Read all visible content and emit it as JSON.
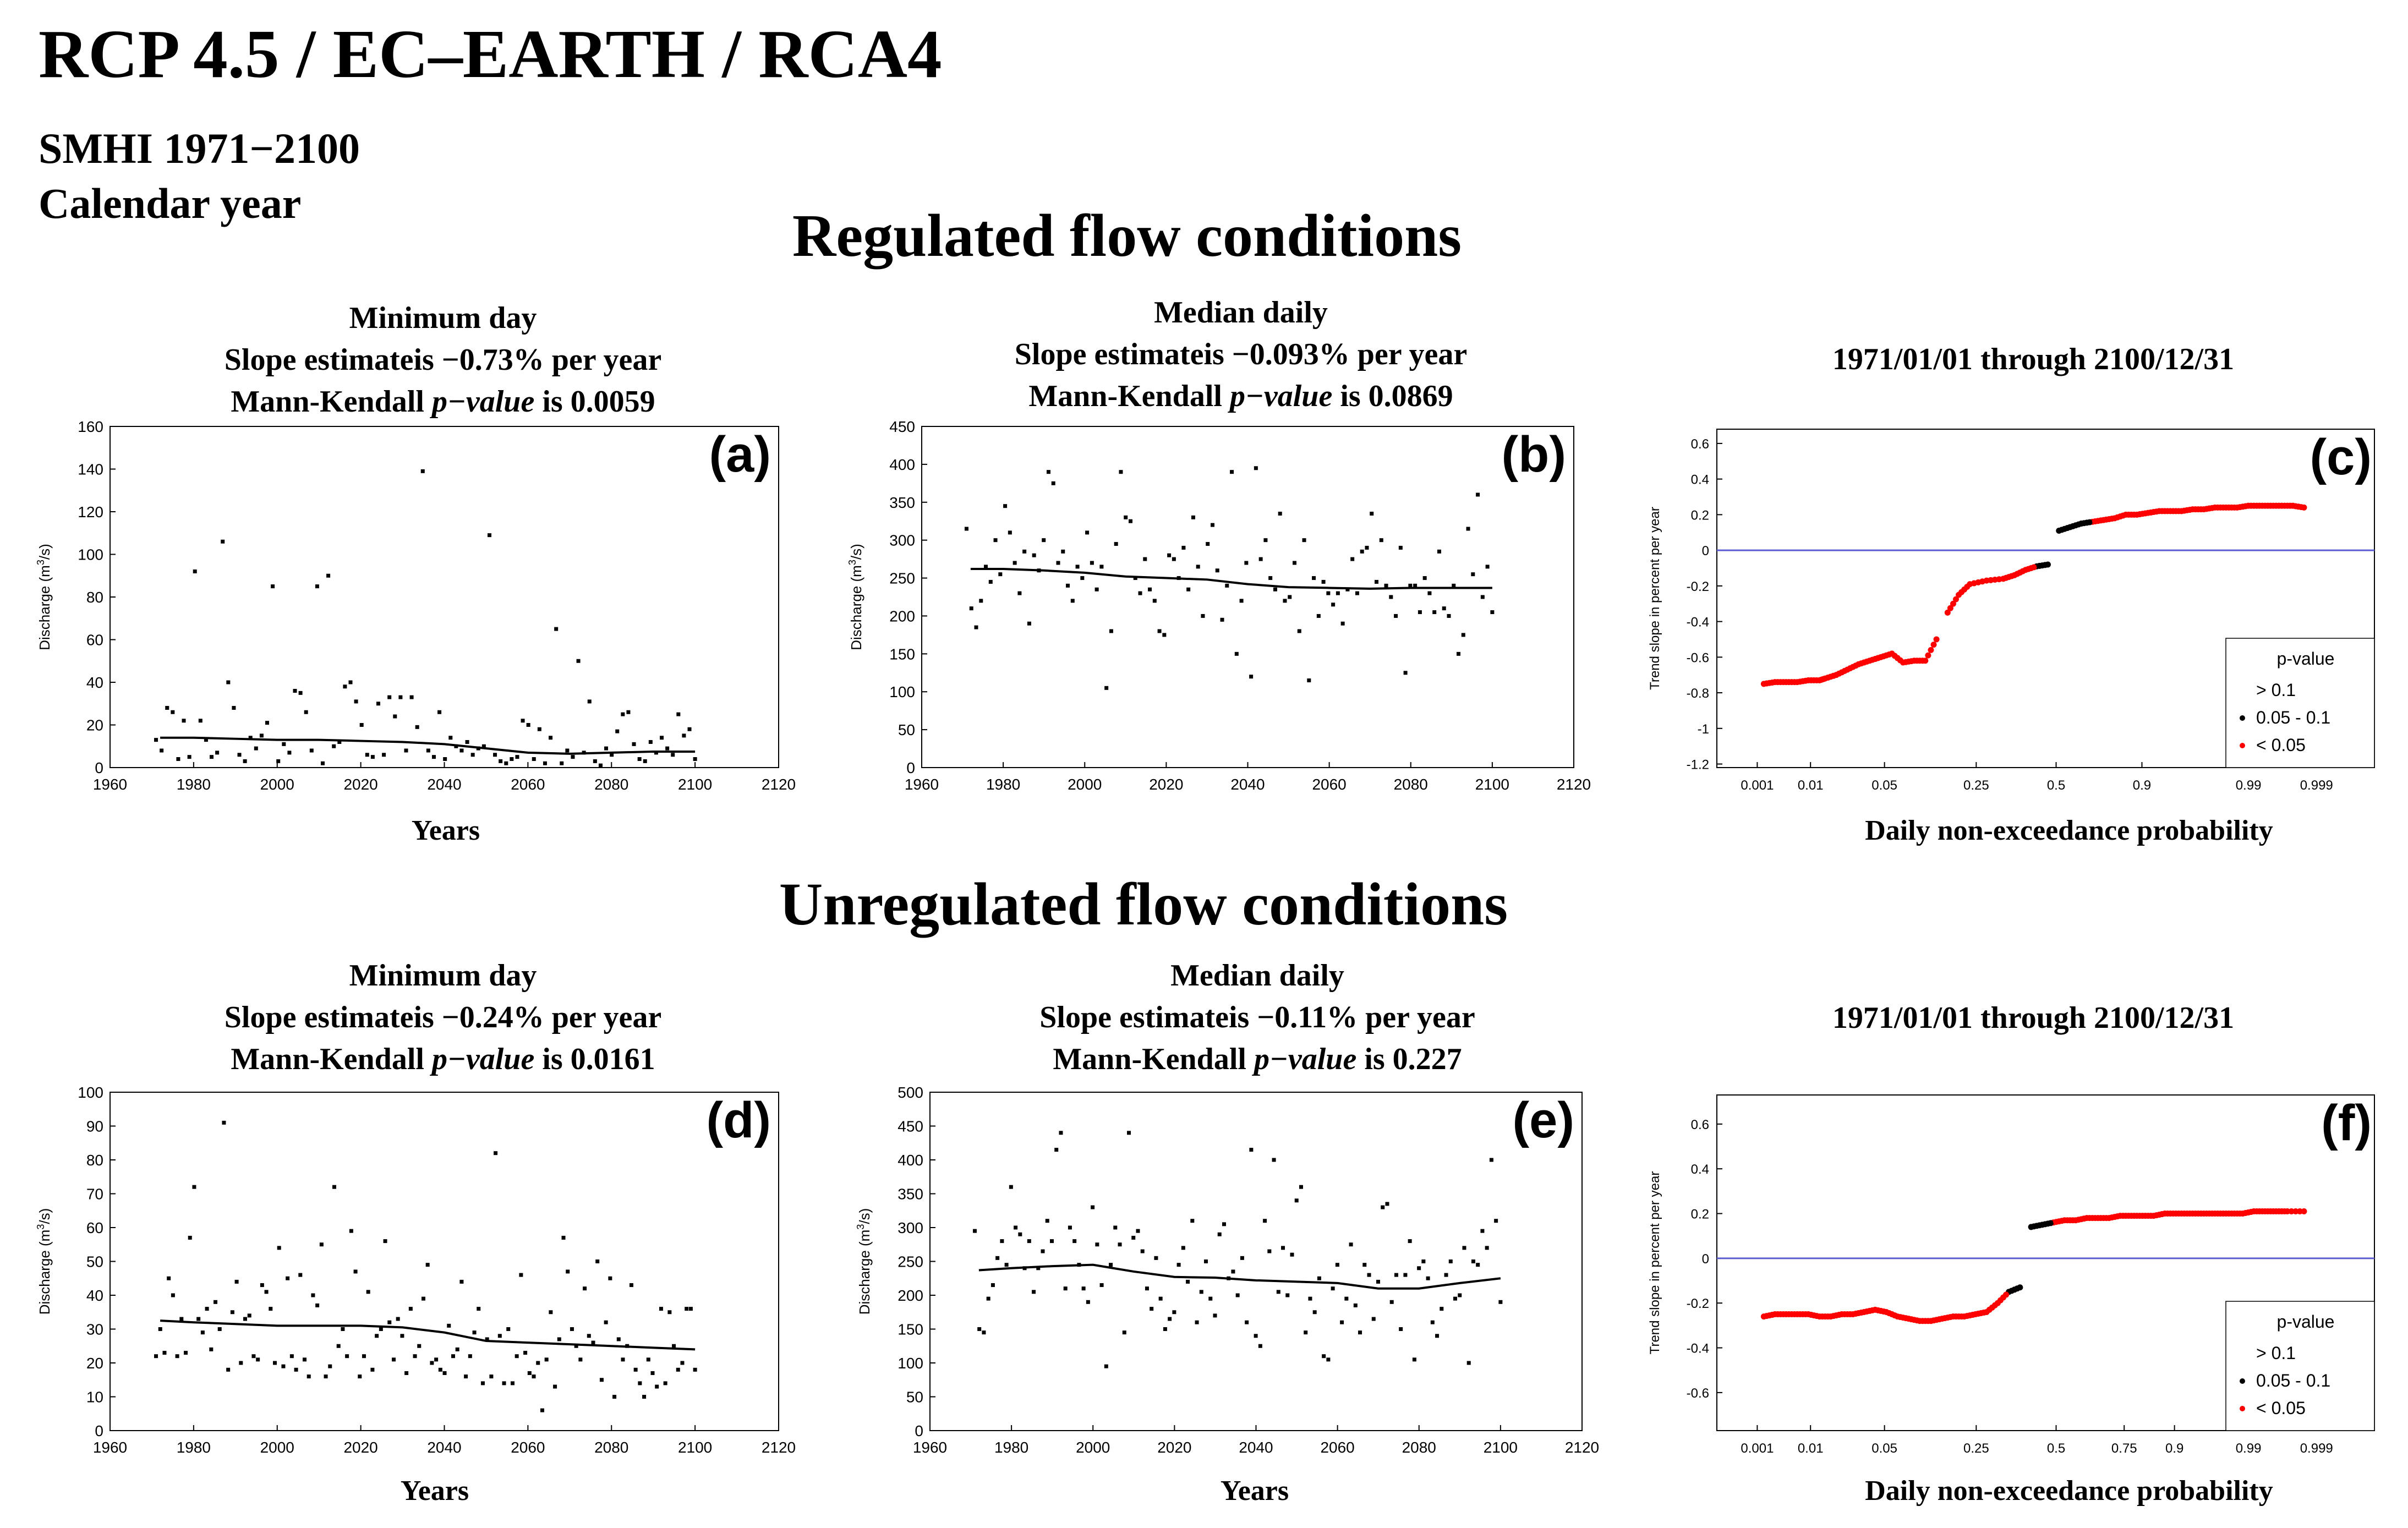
{
  "header": {
    "title": "RCP 4.5 / EC–EARTH / RCA4",
    "line1": "SMHI  1971−2100",
    "line2": "Calendar year"
  },
  "sections": {
    "regulated": "Regulated flow conditions",
    "unregulated": "Unregulated flow conditions"
  },
  "panels": {
    "a": {
      "title1": "Minimum day",
      "title2": "Slope estimateis −0.73% per year",
      "title3a": "Mann-Kendall ",
      "title3b": "p−value",
      "title3c": " is 0.0059",
      "xlabel": "Years"
    },
    "b": {
      "title1": "Median daily",
      "title2": "Slope estimateis −0.093% per year",
      "title3a": "Mann-Kendall ",
      "title3b": "p−value",
      "title3c": " is 0.0869",
      "xlabel": ""
    },
    "c": {
      "title1": "1971/01/01 through 2100/12/31",
      "xlabel": "Daily non-exceedance probability"
    },
    "d": {
      "title1": "Minimum day",
      "title2": "Slope estimateis −0.24% per year",
      "title3a": "Mann-Kendall ",
      "title3b": "p−value",
      "title3c": " is 0.0161",
      "xlabel": "Years"
    },
    "e": {
      "title1": "Median daily",
      "title2": "Slope estimateis −0.11% per year",
      "title3a": "Mann-Kendall ",
      "title3b": "p−value",
      "title3c": " is 0.227",
      "xlabel": "Years"
    },
    "f": {
      "title1": "1971/01/01 through 2100/12/31",
      "xlabel": "Daily non-exceedance probability"
    }
  },
  "colors": {
    "red": "#ff0000",
    "black": "#000000",
    "zero_line": "#5a5ad2"
  },
  "chart_data": [
    {
      "id": "a",
      "type": "scatter",
      "panel_label": "(a)",
      "ylabel": "Discharge (m³/s)",
      "xlim": [
        1960,
        2120
      ],
      "ylim": [
        0,
        160
      ],
      "xticks": [
        1960,
        1980,
        2000,
        2020,
        2040,
        2060,
        2080,
        2100,
        2120
      ],
      "yticks": [
        0,
        20,
        40,
        60,
        80,
        100,
        120,
        140,
        160
      ],
      "scatter_y": [
        13,
        8,
        28,
        26,
        4,
        22,
        5,
        92,
        22,
        13,
        5,
        7,
        106,
        40,
        28,
        6,
        3,
        14,
        9,
        15,
        21,
        85,
        3,
        11,
        7,
        36,
        35,
        26,
        8,
        85,
        2,
        90,
        10,
        12,
        38,
        40,
        31,
        20,
        6,
        5,
        30,
        6,
        33,
        24,
        33,
        8,
        33,
        19,
        139,
        8,
        5,
        26,
        4,
        14,
        10,
        8,
        12,
        6,
        9,
        10,
        109,
        6,
        3,
        2,
        4,
        5,
        22,
        20,
        4,
        18,
        2,
        14,
        65,
        2,
        8,
        5,
        50,
        7,
        31,
        3,
        1,
        9,
        6,
        17,
        25,
        26,
        11,
        4,
        3,
        12,
        7,
        14,
        9,
        6,
        25,
        15,
        18,
        4
      ],
      "trend": {
        "x": [
          1972,
          1980,
          1990,
          2000,
          2010,
          2020,
          2030,
          2040,
          2050,
          2060,
          2070,
          2080,
          2090,
          2100
        ],
        "y": [
          14,
          14,
          13.5,
          13,
          13,
          12.5,
          12,
          11,
          9,
          7,
          6.5,
          7,
          7.5,
          7.5
        ]
      }
    },
    {
      "id": "b",
      "type": "scatter",
      "panel_label": "(b)",
      "ylabel": "Discharge (m³/s)",
      "xlim": [
        1960,
        2120
      ],
      "ylim": [
        0,
        450
      ],
      "xticks": [
        1960,
        1980,
        2000,
        2020,
        2040,
        2060,
        2080,
        2100,
        2120
      ],
      "yticks": [
        0,
        50,
        100,
        150,
        200,
        250,
        300,
        350,
        400,
        450
      ],
      "scatter_y": [
        315,
        210,
        185,
        220,
        265,
        245,
        300,
        255,
        345,
        310,
        270,
        230,
        285,
        190,
        280,
        260,
        300,
        390,
        375,
        270,
        285,
        240,
        220,
        265,
        250,
        310,
        270,
        235,
        265,
        105,
        180,
        295,
        390,
        330,
        325,
        250,
        230,
        275,
        235,
        220,
        180,
        175,
        280,
        275,
        250,
        290,
        235,
        330,
        265,
        200,
        295,
        320,
        260,
        195,
        240,
        390,
        150,
        220,
        270,
        120,
        395,
        275,
        300,
        250,
        235,
        335,
        220,
        225,
        270,
        180,
        300,
        115,
        250,
        200,
        245,
        230,
        215,
        230,
        190,
        235,
        275,
        230,
        285,
        290,
        335,
        245,
        300,
        240,
        225,
        200,
        290,
        125,
        240,
        240,
        205,
        250,
        230,
        205,
        285,
        210,
        200,
        240,
        150,
        175,
        315,
        255,
        360,
        225,
        265,
        205
      ],
      "trend": {
        "x": [
          1972,
          1980,
          1990,
          2000,
          2010,
          2020,
          2030,
          2040,
          2050,
          2060,
          2070,
          2080,
          2090,
          2100
        ],
        "y": [
          262,
          262,
          260,
          257,
          252,
          250,
          248,
          242,
          238,
          237,
          236,
          237,
          237,
          237
        ]
      }
    },
    {
      "id": "c",
      "type": "scatter",
      "panel_label": "(c)",
      "ylabel": "Trend slope in percent per year",
      "xticks": [
        "0.001",
        "0.01",
        "0.05",
        "0.25",
        "0.5",
        "0.9",
        "0.99",
        "0.999"
      ],
      "yticks": [
        -1.2,
        -1,
        -0.8,
        -0.6,
        -0.4,
        -0.2,
        0,
        0.2,
        0.4,
        0.6
      ],
      "ylim": [
        -1.22,
        0.68
      ],
      "legend": {
        "title": "p-value",
        "entries": [
          "> 0.1",
          "0.05 - 0.1",
          "< 0.05"
        ],
        "location": "lower-right"
      },
      "curve": {
        "t": [
          0.03,
          0.05,
          0.07,
          0.09,
          0.11,
          0.13,
          0.14,
          0.16,
          0.18,
          0.2,
          0.22,
          0.24,
          0.26,
          0.28,
          0.3,
          0.32,
          0.34,
          0.36,
          0.38,
          0.4,
          0.43,
          0.46,
          0.48,
          0.5,
          0.52,
          0.54,
          0.56,
          0.58,
          0.6,
          0.62,
          0.64,
          0.66,
          0.68,
          0.7,
          0.72,
          0.74,
          0.76,
          0.78,
          0.8,
          0.82,
          0.84,
          0.86,
          0.88,
          0.9,
          0.92,
          0.94,
          0.96,
          0.98,
          1.0
        ],
        "y": [
          -0.75,
          -0.74,
          -0.74,
          -0.74,
          -0.73,
          -0.73,
          -0.72,
          -0.7,
          -0.67,
          -0.64,
          -0.62,
          -0.6,
          -0.58,
          -0.63,
          -0.62,
          -0.62,
          -0.5,
          -0.35,
          -0.25,
          -0.19,
          -0.17,
          -0.16,
          -0.14,
          -0.11,
          -0.09,
          -0.08,
          0.11,
          0.13,
          0.15,
          0.16,
          0.17,
          0.18,
          0.2,
          0.2,
          0.21,
          0.22,
          0.22,
          0.22,
          0.23,
          0.23,
          0.24,
          0.24,
          0.24,
          0.25,
          0.25,
          0.25,
          0.25,
          0.25,
          0.24
        ],
        "p": [
          "r",
          "r",
          "r",
          "r",
          "r",
          "r",
          "r",
          "r",
          "r",
          "r",
          "r",
          "r",
          "r",
          "r",
          "r",
          "r",
          "r",
          "r",
          "r",
          "r",
          "r",
          "r",
          "r",
          "r",
          "k",
          "k",
          "k",
          "k",
          "k",
          "r",
          "r",
          "r",
          "r",
          "r",
          "r",
          "r",
          "r",
          "r",
          "r",
          "r",
          "r",
          "r",
          "r",
          "r",
          "r",
          "r",
          "r",
          "r",
          "r"
        ]
      }
    },
    {
      "id": "d",
      "type": "scatter",
      "panel_label": "(d)",
      "ylabel": "Discharge (m³/s)",
      "xlim": [
        1960,
        2120
      ],
      "ylim": [
        0,
        100
      ],
      "xticks": [
        1960,
        1980,
        2000,
        2020,
        2040,
        2060,
        2080,
        2100,
        2120
      ],
      "yticks": [
        0,
        10,
        20,
        30,
        40,
        50,
        60,
        70,
        80,
        90,
        100
      ],
      "scatter_y": [
        22,
        30,
        23,
        45,
        40,
        22,
        33,
        23,
        57,
        72,
        33,
        29,
        36,
        24,
        38,
        30,
        91,
        18,
        35,
        44,
        20,
        33,
        34,
        22,
        21,
        43,
        41,
        36,
        20,
        54,
        19,
        45,
        22,
        18,
        46,
        21,
        16,
        40,
        37,
        55,
        16,
        19,
        72,
        25,
        30,
        22,
        59,
        47,
        16,
        22,
        41,
        18,
        28,
        30,
        56,
        32,
        21,
        33,
        28,
        17,
        36,
        22,
        25,
        39,
        49,
        20,
        21,
        18,
        17,
        31,
        22,
        24,
        44,
        16,
        22,
        29,
        36,
        14,
        27,
        16,
        82,
        28,
        14,
        30,
        14,
        22,
        46,
        23,
        17,
        16,
        20,
        6,
        21,
        35,
        13,
        27,
        57,
        47,
        30,
        25,
        21,
        42,
        28,
        26,
        50,
        15,
        32,
        45,
        10,
        27,
        21,
        25,
        43,
        18,
        14,
        10,
        21,
        17,
        13,
        36,
        14,
        35,
        25,
        18,
        20,
        36,
        36,
        18
      ],
      "trend": {
        "x": [
          1972,
          1980,
          1990,
          2000,
          2010,
          2020,
          2030,
          2040,
          2050,
          2060,
          2070,
          2080,
          2090,
          2100
        ],
        "y": [
          32.5,
          32,
          31.5,
          31,
          31,
          31,
          30.5,
          29,
          26.5,
          26,
          25.5,
          25,
          24.5,
          24
        ]
      }
    },
    {
      "id": "e",
      "type": "scatter",
      "panel_label": "(e)",
      "ylabel": "Discharge (m³/s)",
      "xlim": [
        1960,
        2120
      ],
      "ylim": [
        0,
        500
      ],
      "xticks": [
        1960,
        1980,
        2000,
        2020,
        2040,
        2060,
        2080,
        2100,
        2120
      ],
      "yticks": [
        0,
        50,
        100,
        150,
        200,
        250,
        300,
        350,
        400,
        450,
        500
      ],
      "scatter_y": [
        295,
        150,
        145,
        195,
        215,
        255,
        280,
        245,
        360,
        300,
        290,
        240,
        280,
        205,
        240,
        265,
        310,
        280,
        415,
        440,
        210,
        300,
        280,
        245,
        210,
        190,
        330,
        275,
        215,
        95,
        245,
        300,
        275,
        145,
        440,
        285,
        295,
        265,
        210,
        180,
        255,
        195,
        150,
        165,
        175,
        245,
        270,
        220,
        310,
        160,
        205,
        250,
        195,
        170,
        290,
        305,
        225,
        235,
        200,
        255,
        160,
        415,
        140,
        125,
        310,
        265,
        400,
        205,
        270,
        200,
        260,
        340,
        360,
        145,
        195,
        175,
        225,
        110,
        105,
        210,
        245,
        160,
        195,
        275,
        185,
        145,
        245,
        230,
        165,
        220,
        330,
        335,
        190,
        230,
        150,
        230,
        280,
        105,
        240,
        250,
        225,
        160,
        140,
        180,
        230,
        250,
        195,
        200,
        270,
        100,
        250,
        245,
        295,
        270,
        400,
        310,
        190
      ],
      "trend": {
        "x": [
          1972,
          1980,
          1990,
          2000,
          2010,
          2020,
          2030,
          2040,
          2050,
          2060,
          2070,
          2080,
          2090,
          2100
        ],
        "y": [
          237,
          240,
          243,
          245,
          235,
          227,
          226,
          222,
          220,
          218,
          210,
          210,
          218,
          225
        ]
      }
    },
    {
      "id": "f",
      "type": "scatter",
      "panel_label": "(f)",
      "ylabel": "Trend slope in percent per year",
      "xticks": [
        "0.001",
        "0.01",
        "0.05",
        "0.25",
        "0.5",
        "0.75",
        "0.9",
        "0.99",
        "0.999"
      ],
      "yticks": [
        -0.6,
        -0.4,
        -0.2,
        0,
        0.2,
        0.4,
        0.6
      ],
      "ylim": [
        -0.77,
        0.73
      ],
      "legend": {
        "title": "p-value",
        "entries": [
          "> 0.1",
          "0.05 - 0.1",
          "< 0.05"
        ],
        "location": "lower-right"
      },
      "curve": {
        "t": [
          0.03,
          0.05,
          0.07,
          0.09,
          0.11,
          0.13,
          0.15,
          0.17,
          0.19,
          0.21,
          0.23,
          0.25,
          0.27,
          0.29,
          0.31,
          0.33,
          0.35,
          0.37,
          0.39,
          0.41,
          0.43,
          0.45,
          0.47,
          0.49,
          0.51,
          0.53,
          0.55,
          0.57,
          0.59,
          0.61,
          0.63,
          0.65,
          0.67,
          0.69,
          0.71,
          0.73,
          0.75,
          0.77,
          0.79,
          0.81,
          0.83,
          0.85,
          0.87,
          0.89,
          0.91,
          0.93,
          0.95,
          0.97,
          1.0
        ],
        "y": [
          -0.26,
          -0.25,
          -0.25,
          -0.25,
          -0.25,
          -0.26,
          -0.26,
          -0.25,
          -0.25,
          -0.24,
          -0.23,
          -0.24,
          -0.26,
          -0.27,
          -0.28,
          -0.28,
          -0.27,
          -0.26,
          -0.26,
          -0.25,
          -0.24,
          -0.2,
          -0.15,
          -0.13,
          0.14,
          0.15,
          0.16,
          0.17,
          0.17,
          0.18,
          0.18,
          0.18,
          0.19,
          0.19,
          0.19,
          0.19,
          0.2,
          0.2,
          0.2,
          0.2,
          0.2,
          0.2,
          0.2,
          0.2,
          0.21,
          0.21,
          0.21,
          0.21,
          0.21
        ],
        "p": [
          "r",
          "r",
          "r",
          "r",
          "r",
          "r",
          "r",
          "r",
          "r",
          "r",
          "r",
          "r",
          "r",
          "r",
          "r",
          "r",
          "r",
          "r",
          "r",
          "r",
          "r",
          "r",
          "k",
          "k",
          "k",
          "k",
          "r",
          "r",
          "r",
          "r",
          "r",
          "r",
          "r",
          "r",
          "r",
          "r",
          "r",
          "r",
          "r",
          "r",
          "r",
          "r",
          "r",
          "r",
          "r",
          "r",
          "r",
          "r",
          "r"
        ]
      }
    }
  ]
}
